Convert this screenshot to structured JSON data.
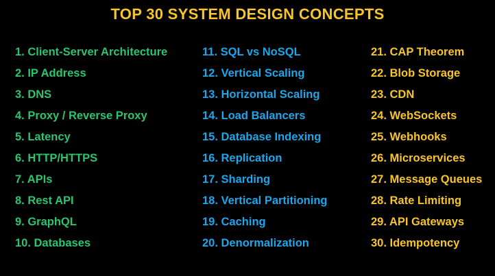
{
  "title": "TOP 30 SYSTEM DESIGN CONCEPTS",
  "columns": [
    {
      "items": [
        "1. Client-Server Architecture",
        "2. IP Address",
        "3. DNS",
        "4. Proxy / Reverse Proxy",
        "5. Latency",
        "6. HTTP/HTTPS",
        "7. APIs",
        "8. Rest API",
        "9. GraphQL",
        "10. Databases"
      ]
    },
    {
      "items": [
        "11. SQL vs NoSQL",
        "12. Vertical Scaling",
        "13. Horizontal Scaling",
        "14. Load Balancers",
        "15. Database Indexing",
        "16. Replication",
        "17. Sharding",
        "18. Vertical Partitioning",
        "19. Caching",
        "20. Denormalization"
      ]
    },
    {
      "items": [
        "21. CAP Theorem",
        "22. Blob Storage",
        "23. CDN",
        "24. WebSockets",
        "25. Webhooks",
        "26. Microservices",
        "27. Message Queues",
        "28. Rate Limiting",
        "29. API Gateways",
        "30. Idempotency"
      ]
    }
  ]
}
